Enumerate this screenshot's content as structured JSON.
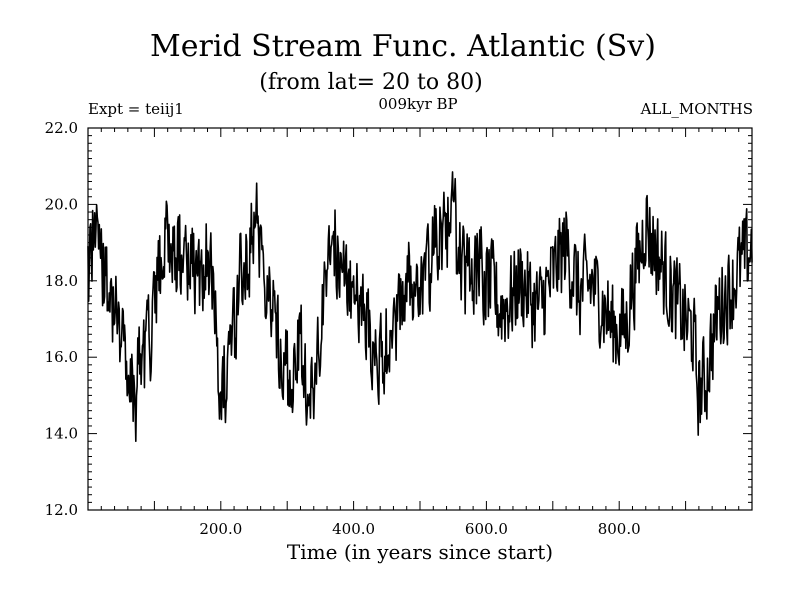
{
  "chart_data": {
    "type": "line",
    "title": "Merid Stream Func. Atlantic (Sv)",
    "subtitle": "(from lat= 20 to 80)",
    "experiment_label": "Expt = teiij1",
    "period_label": "009kyr BP",
    "months_label": "ALL_MONTHS",
    "xlabel": "Time (in years since start)",
    "ylabel": "",
    "xlim": [
      0,
      1000
    ],
    "ylim": [
      12.0,
      22.0
    ],
    "x_ticks": [
      200.0,
      400.0,
      600.0,
      800.0
    ],
    "x_tick_labels": [
      "200.0",
      "400.0",
      "600.0",
      "800.0"
    ],
    "y_ticks": [
      12.0,
      14.0,
      16.0,
      18.0,
      20.0,
      22.0
    ],
    "y_tick_labels": [
      "12.0",
      "14.0",
      "16.0",
      "18.0",
      "20.0",
      "22.0"
    ],
    "grid": false,
    "line_color": "#000000",
    "series": [
      {
        "x": [
          0,
          10,
          20,
          30,
          40,
          50,
          60,
          70,
          80,
          90,
          100,
          110,
          120,
          130,
          140,
          150,
          160,
          170,
          180,
          190,
          200,
          210,
          220,
          230,
          240,
          250,
          260,
          270,
          280,
          290,
          300,
          310,
          320,
          330,
          340,
          350,
          360,
          370,
          380,
          390,
          400,
          410,
          420,
          430,
          440,
          450,
          460,
          470,
          480,
          490,
          500,
          510,
          520,
          530,
          540,
          550,
          560,
          570,
          580,
          590,
          600,
          610,
          620,
          630,
          640,
          650,
          660,
          670,
          680,
          690,
          700,
          710,
          720,
          730,
          740,
          750,
          760,
          770,
          780,
          790,
          800,
          810,
          820,
          830,
          840,
          850,
          860,
          870,
          880,
          890,
          900,
          910,
          920,
          930,
          940,
          950,
          960,
          970,
          980,
          990,
          1000
        ],
        "values": [
          18.5,
          19.6,
          18.3,
          18.1,
          17.2,
          16.9,
          15.4,
          14.8,
          15.9,
          16.4,
          17.0,
          18.6,
          19.4,
          18.4,
          18.7,
          18.6,
          18.2,
          18.0,
          18.9,
          17.6,
          15.5,
          15.2,
          16.6,
          18.3,
          18.6,
          19.6,
          19.1,
          18.0,
          17.2,
          16.4,
          15.6,
          15.2,
          16.4,
          15.3,
          15.0,
          16.4,
          18.6,
          19.0,
          18.4,
          17.9,
          17.6,
          17.3,
          16.8,
          16.4,
          15.8,
          16.4,
          16.7,
          17.6,
          18.1,
          17.8,
          17.4,
          18.1,
          18.9,
          19.0,
          19.4,
          19.8,
          18.6,
          18.1,
          18.3,
          18.4,
          17.9,
          17.8,
          17.3,
          17.4,
          17.6,
          18.0,
          17.8,
          17.4,
          17.3,
          17.7,
          18.1,
          18.6,
          18.9,
          18.3,
          17.6,
          17.9,
          17.9,
          17.6,
          17.2,
          16.8,
          16.7,
          16.8,
          17.9,
          18.6,
          19.6,
          19.0,
          18.6,
          18.1,
          17.6,
          17.3,
          16.9,
          16.7,
          15.1,
          15.4,
          16.4,
          17.3,
          17.6,
          17.9,
          18.3,
          18.6,
          18.9
        ]
      }
    ]
  }
}
